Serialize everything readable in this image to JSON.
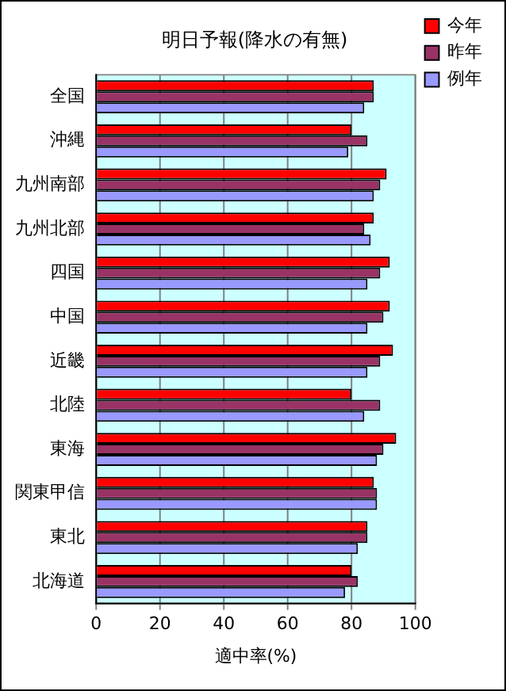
{
  "chart_data": {
    "type": "bar",
    "orientation": "horizontal",
    "title": "明日予報(降水の有無)",
    "xlabel": "適中率(%)",
    "categories": [
      "全国",
      "沖縄",
      "九州南部",
      "九州北部",
      "四国",
      "中国",
      "近畿",
      "北陸",
      "東海",
      "関東甲信",
      "東北",
      "北海道"
    ],
    "series": [
      {
        "name": "今年",
        "color": "#ff0000",
        "values": [
          87,
          80,
          91,
          87,
          92,
          92,
          93,
          80,
          94,
          87,
          85,
          80
        ]
      },
      {
        "name": "昨年",
        "color": "#993366",
        "values": [
          87,
          85,
          89,
          84,
          89,
          90,
          89,
          89,
          90,
          88,
          85,
          82
        ]
      },
      {
        "name": "例年",
        "color": "#9999ff",
        "values": [
          84,
          79,
          87,
          86,
          85,
          85,
          85,
          84,
          88,
          88,
          82,
          78
        ]
      }
    ],
    "xlim": [
      0,
      100
    ],
    "xticks": [
      0,
      20,
      40,
      60,
      80,
      100
    ],
    "grid": "x",
    "legend": "top right"
  }
}
